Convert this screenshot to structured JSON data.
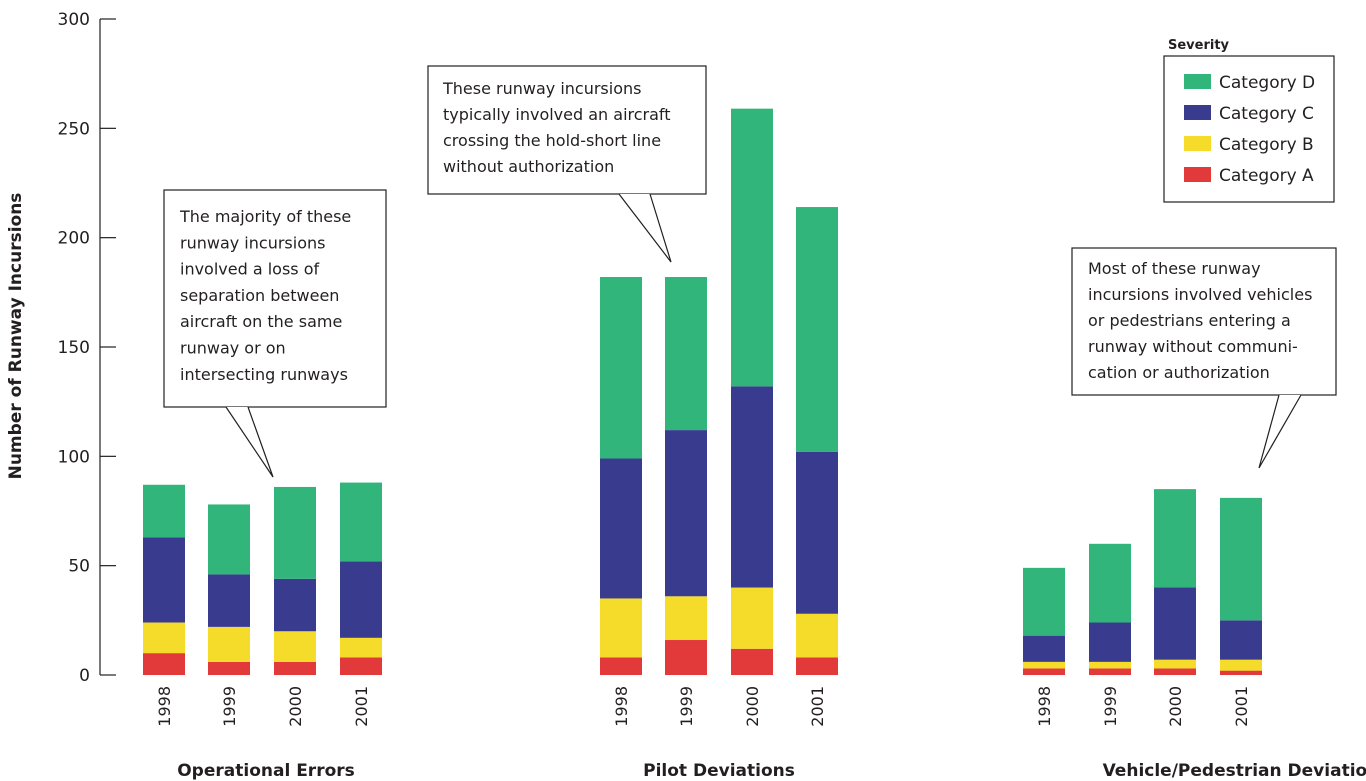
{
  "chart_data": {
    "type": "bar",
    "stacked": true,
    "ylabel": "Number of Runway Incursions",
    "ylim": [
      0,
      300
    ],
    "yticks": [
      0,
      50,
      100,
      150,
      200,
      250,
      300
    ],
    "grid": false,
    "legend": {
      "title": "Severity",
      "placement": "top-right",
      "order": [
        "Category D",
        "Category C",
        "Category B",
        "Category A"
      ]
    },
    "colors": {
      "Category A": "#e23a3a",
      "Category B": "#f6dc2a",
      "Category C": "#393b8f",
      "Category D": "#31b57a"
    },
    "groups": [
      {
        "name": "Operational Errors",
        "categories": [
          "1998",
          "1999",
          "2000",
          "2001"
        ],
        "series": [
          {
            "name": "Category A",
            "values": [
              10,
              6,
              6,
              8
            ]
          },
          {
            "name": "Category B",
            "values": [
              14,
              16,
              14,
              9
            ]
          },
          {
            "name": "Category C",
            "values": [
              39,
              24,
              24,
              35
            ]
          },
          {
            "name": "Category D",
            "values": [
              24,
              32,
              42,
              36
            ]
          }
        ],
        "annotation": [
          "The majority of these",
          "runway incursions",
          "involved a loss of",
          "separation between",
          "aircraft on the same",
          "runway or on",
          "intersecting runways"
        ]
      },
      {
        "name": "Pilot Deviations",
        "categories": [
          "1998",
          "1999",
          "2000",
          "2001"
        ],
        "series": [
          {
            "name": "Category A",
            "values": [
              8,
              16,
              12,
              8
            ]
          },
          {
            "name": "Category B",
            "values": [
              27,
              20,
              28,
              20
            ]
          },
          {
            "name": "Category C",
            "values": [
              64,
              76,
              92,
              74
            ]
          },
          {
            "name": "Category D",
            "values": [
              83,
              70,
              127,
              112
            ]
          }
        ],
        "annotation": [
          "These runway incursions",
          "typically involved an aircraft",
          "crossing the hold-short line",
          "without authorization"
        ]
      },
      {
        "name": "Vehicle/Pedestrian Deviations",
        "categories": [
          "1998",
          "1999",
          "2000",
          "2001"
        ],
        "series": [
          {
            "name": "Category A",
            "values": [
              3,
              3,
              3,
              2
            ]
          },
          {
            "name": "Category B",
            "values": [
              3,
              3,
              4,
              5
            ]
          },
          {
            "name": "Category C",
            "values": [
              12,
              18,
              33,
              18
            ]
          },
          {
            "name": "Category D",
            "values": [
              31,
              36,
              45,
              56
            ]
          }
        ],
        "annotation": [
          "Most of these runway",
          "incursions involved vehicles",
          "or pedestrians entering a",
          "runway without communi-",
          "cation or authorization"
        ]
      }
    ]
  }
}
